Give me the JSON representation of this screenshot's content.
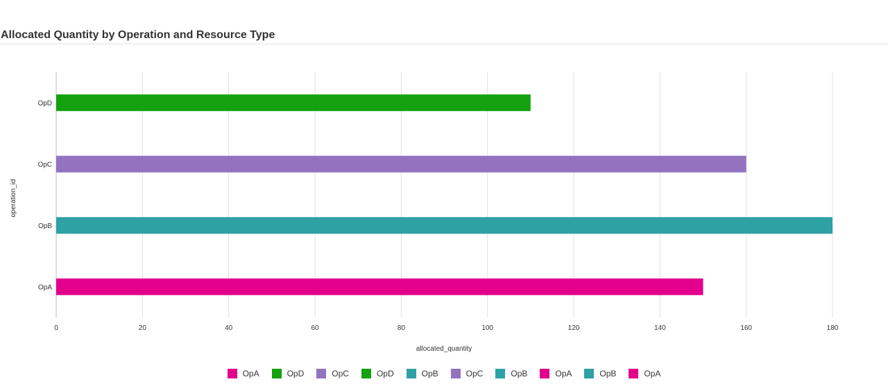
{
  "page": {
    "title": "Allocated Quantity by Operation and Resource Type"
  },
  "chart_data": {
    "type": "bar",
    "orientation": "horizontal",
    "categories": [
      "OpD",
      "OpC",
      "OpB",
      "OpA"
    ],
    "values": [
      110,
      160,
      180,
      150
    ],
    "bar_colors": [
      "#13a10e",
      "#9373c0",
      "#2ea1a5",
      "#e3008c"
    ],
    "xlabel": "allocated_quantity",
    "ylabel": "operation_id",
    "xlim": [
      0,
      180
    ],
    "xticks": [
      0,
      20,
      40,
      60,
      80,
      100,
      120,
      140,
      160,
      180
    ],
    "grid": "vertical",
    "legend_position": "bottom",
    "legend": [
      {
        "name": "OpA",
        "color": "#e3008c"
      },
      {
        "name": "OpD",
        "color": "#13a10e"
      },
      {
        "name": "OpC",
        "color": "#9373c0"
      },
      {
        "name": "OpD",
        "color": "#13a10e"
      },
      {
        "name": "OpB",
        "color": "#2ea1a5"
      },
      {
        "name": "OpC",
        "color": "#9373c0"
      },
      {
        "name": "OpB",
        "color": "#2ea1a5"
      },
      {
        "name": "OpA",
        "color": "#e3008c"
      },
      {
        "name": "OpB",
        "color": "#2ea1a5"
      },
      {
        "name": "OpA",
        "color": "#e3008c"
      }
    ]
  }
}
